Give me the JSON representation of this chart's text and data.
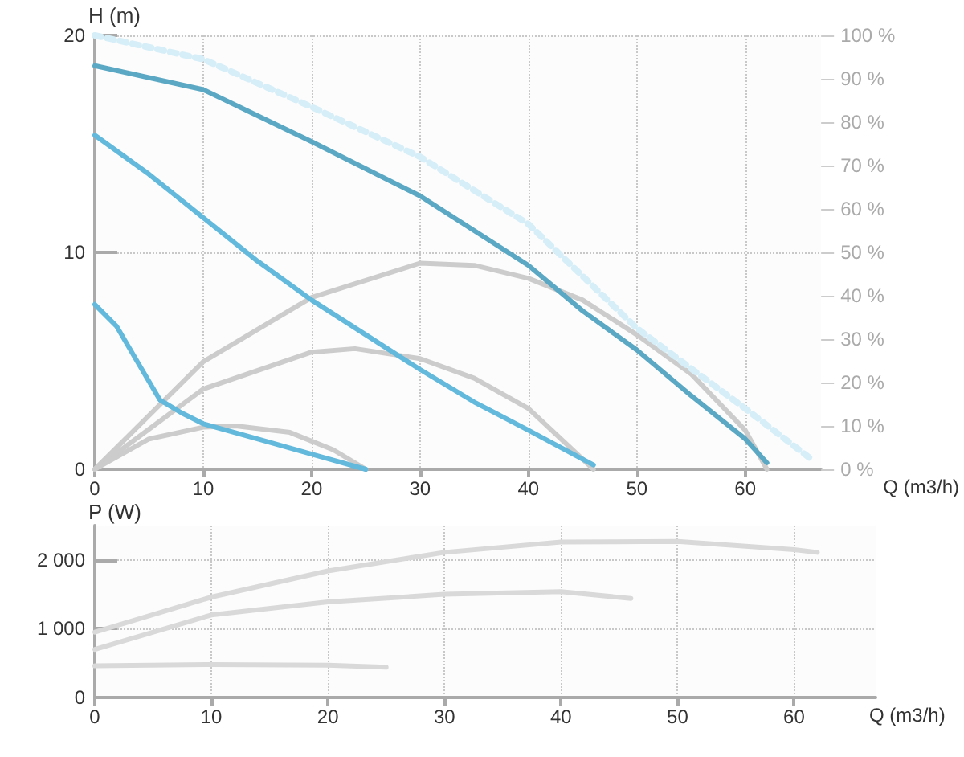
{
  "chart_data": [
    {
      "type": "line",
      "xlabel": "Q (m3/h)",
      "ylabel": "H (m)",
      "xlim": [
        0,
        67
      ],
      "xticks": [
        0,
        10,
        20,
        30,
        40,
        50,
        60
      ],
      "ylim": [
        0,
        20
      ],
      "yticks": [
        0,
        10,
        20
      ],
      "y2lim": [
        0,
        100
      ],
      "y2ticks": [
        {
          "value": 0,
          "label": "0 %"
        },
        {
          "value": 10,
          "label": "10 %"
        },
        {
          "value": 20,
          "label": "20 %"
        },
        {
          "value": 30,
          "label": "30 %"
        },
        {
          "value": 40,
          "label": "40 %"
        },
        {
          "value": 50,
          "label": "50 %"
        },
        {
          "value": 60,
          "label": "60 %"
        },
        {
          "value": 70,
          "label": "70 %"
        },
        {
          "value": 80,
          "label": "80 %"
        },
        {
          "value": 90,
          "label": "90 %"
        },
        {
          "value": 100,
          "label": "100 %"
        }
      ],
      "grid": true,
      "marker": "none",
      "series": [
        {
          "color": "#d6eef7",
          "line_style": "dotted",
          "x": [
            0,
            10,
            20,
            30,
            40,
            50,
            60,
            66
          ],
          "values": [
            20,
            18.9,
            16.7,
            14.4,
            11.3,
            6.5,
            2.8,
            0.5
          ]
        },
        {
          "color": "#5ba8c4",
          "x": [
            0,
            10,
            20,
            30,
            40,
            45,
            50,
            55,
            60,
            62
          ],
          "values": [
            18.6,
            17.5,
            15.1,
            12.6,
            9.4,
            7.3,
            5.5,
            3.4,
            1.4,
            0.3
          ]
        },
        {
          "color": "#62b9dc",
          "x": [
            0,
            5,
            10,
            15,
            20,
            25,
            30,
            35,
            40,
            46
          ],
          "values": [
            15.4,
            13.6,
            11.6,
            9.6,
            7.8,
            6.2,
            4.6,
            3.1,
            1.8,
            0.2
          ]
        },
        {
          "color": "#62b9dc",
          "x": [
            0,
            2,
            4,
            6,
            8,
            10,
            15,
            20,
            25
          ],
          "values": [
            7.6,
            6.6,
            4.9,
            3.2,
            2.6,
            2.1,
            1.4,
            0.7,
            0
          ]
        },
        {
          "color": "#cccccc",
          "axis": "y2",
          "x": [
            0,
            10,
            20,
            30,
            35,
            40,
            45,
            50,
            55,
            60,
            62
          ],
          "values": [
            0,
            24.8,
            39.6,
            47.5,
            47,
            44,
            39,
            31,
            22,
            9,
            0
          ]
        },
        {
          "color": "#cccccc",
          "axis": "y2",
          "x": [
            0,
            10,
            20,
            24,
            30,
            35,
            40,
            46
          ],
          "values": [
            0,
            18.5,
            27,
            27.8,
            25.5,
            21,
            14,
            0
          ]
        },
        {
          "color": "#cccccc",
          "axis": "y2",
          "x": [
            0,
            5,
            10,
            13,
            18,
            22,
            25
          ],
          "values": [
            0,
            7,
            9.7,
            10,
            8.5,
            4.5,
            0
          ]
        }
      ]
    },
    {
      "type": "line",
      "xlabel": "Q (m3/h)",
      "ylabel": "P (W)",
      "xlim": [
        0,
        67
      ],
      "xticks": [
        0,
        10,
        20,
        30,
        40,
        50,
        60
      ],
      "ylim": [
        0,
        2500
      ],
      "yticks": [
        0,
        {
          "value": 1000,
          "label": "1 000"
        },
        {
          "value": 2000,
          "label": "2 000"
        }
      ],
      "grid": true,
      "marker": "none",
      "series": [
        {
          "color": "#d9d9d9",
          "x": [
            0,
            10,
            20,
            30,
            40,
            50,
            60,
            62
          ],
          "values": [
            950,
            1460,
            1840,
            2110,
            2260,
            2270,
            2150,
            2110
          ]
        },
        {
          "color": "#d9d9d9",
          "x": [
            0,
            10,
            20,
            30,
            40,
            46
          ],
          "values": [
            700,
            1200,
            1390,
            1500,
            1540,
            1440
          ]
        },
        {
          "color": "#d9d9d9",
          "x": [
            0,
            10,
            20,
            25
          ],
          "values": [
            460,
            480,
            470,
            440
          ]
        }
      ]
    }
  ]
}
